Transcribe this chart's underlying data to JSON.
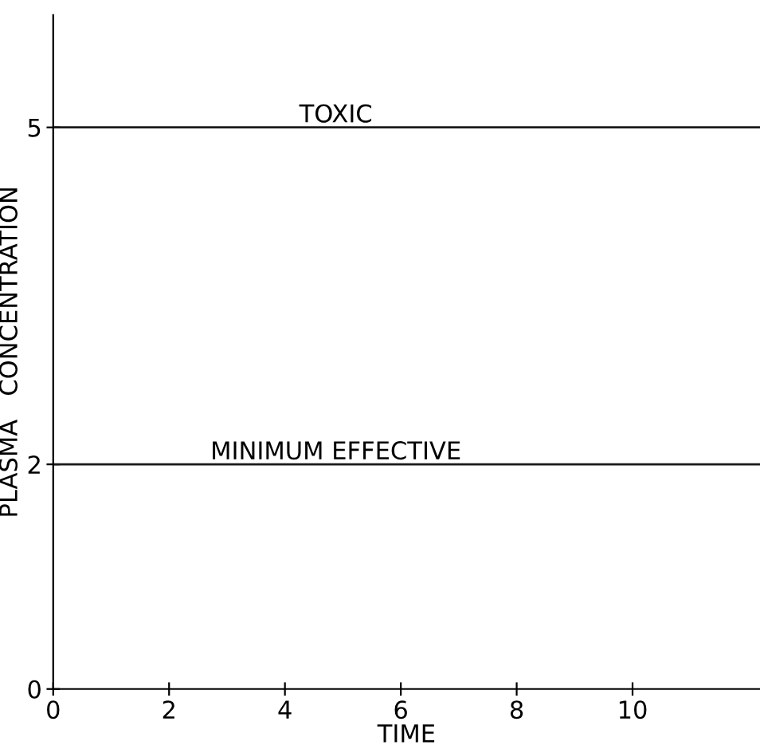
{
  "chart_data": {
    "type": "line",
    "xlabel": "TIME",
    "ylabel": "PLASMA   CONCENTRATION",
    "xlim": [
      0,
      12.2
    ],
    "xticks": [
      0,
      2,
      4,
      6,
      8,
      10
    ],
    "ylim": [
      0,
      6
    ],
    "yticks": [
      0,
      2,
      5
    ],
    "ref_lines": [
      {
        "axis": "y",
        "value": 5,
        "label": "TOXIC",
        "color": "#1a1a1a"
      },
      {
        "axis": "y",
        "value": 2,
        "label": "MINIMUM EFFECTIVE",
        "color": "#1a1a1a"
      }
    ],
    "grid": false
  }
}
